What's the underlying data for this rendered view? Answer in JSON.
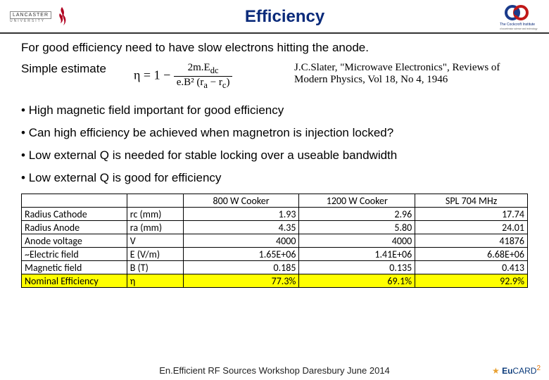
{
  "header": {
    "title": "Efficiency",
    "logo_left_top": "LANCASTER",
    "logo_left_bottom": "UNIVERSITY",
    "logo_right_text": "The Cockcroft Institute",
    "logo_right_sub": "of accelerator science and technology"
  },
  "intro": "For good efficiency need to have slow electrons hitting the anode.",
  "simple_estimate": "Simple estimate",
  "formula": {
    "lhs": "η = 1 −",
    "num": "2m.E_dc",
    "den": "e.B² (r_a − r_c)"
  },
  "citation": "J.C.Slater, \"Microwave Electronics\", Reviews of Modern Physics, Vol 18, No 4, 1946",
  "bullets": [
    "High magnetic field important for good efficiency",
    "Can high efficiency be achieved when magnetron is injection locked?",
    "Low external Q is needed for stable locking over a useable bandwidth",
    "Low external Q is good for efficiency"
  ],
  "table": {
    "columns": [
      "",
      "",
      "800 W Cooker",
      "1200 W Cooker",
      "SPL 704 MHz"
    ],
    "col_widths": [
      "150px",
      "80px",
      "160px",
      "160px",
      "160px"
    ],
    "rows": [
      {
        "label": "Radius Cathode",
        "unit": "rc (mm)",
        "vals": [
          "1.93",
          "2.96",
          "17.74"
        ],
        "hl": false
      },
      {
        "label": "Radius Anode",
        "unit": "ra (mm)",
        "vals": [
          "4.35",
          "5.80",
          "24.01"
        ],
        "hl": false
      },
      {
        "label": "Anode voltage",
        "unit": "V",
        "vals": [
          "4000",
          "4000",
          "41876"
        ],
        "hl": false
      },
      {
        "label": "~Electric field",
        "unit": "E (V/m)",
        "vals": [
          "1.65E+06",
          "1.41E+06",
          "6.68E+06"
        ],
        "hl": false
      },
      {
        "label": "Magnetic field",
        "unit": "B (T)",
        "vals": [
          "0.185",
          "0.135",
          "0.413"
        ],
        "hl": false
      },
      {
        "label": "Nominal Efficiency",
        "unit": "η",
        "vals": [
          "77.3%",
          "69.1%",
          "92.9%"
        ],
        "hl": true
      }
    ]
  },
  "footer": "En.Efficient RF Sources Workshop     Daresbury June 2014",
  "eucard": "EUCARD",
  "colors": {
    "title": "#0a2a7a",
    "highlight_row": "#ffff00",
    "border": "#000000",
    "flame": "#b00020",
    "cockcroft_blue": "#1a3a8a",
    "cockcroft_red": "#c01818"
  }
}
